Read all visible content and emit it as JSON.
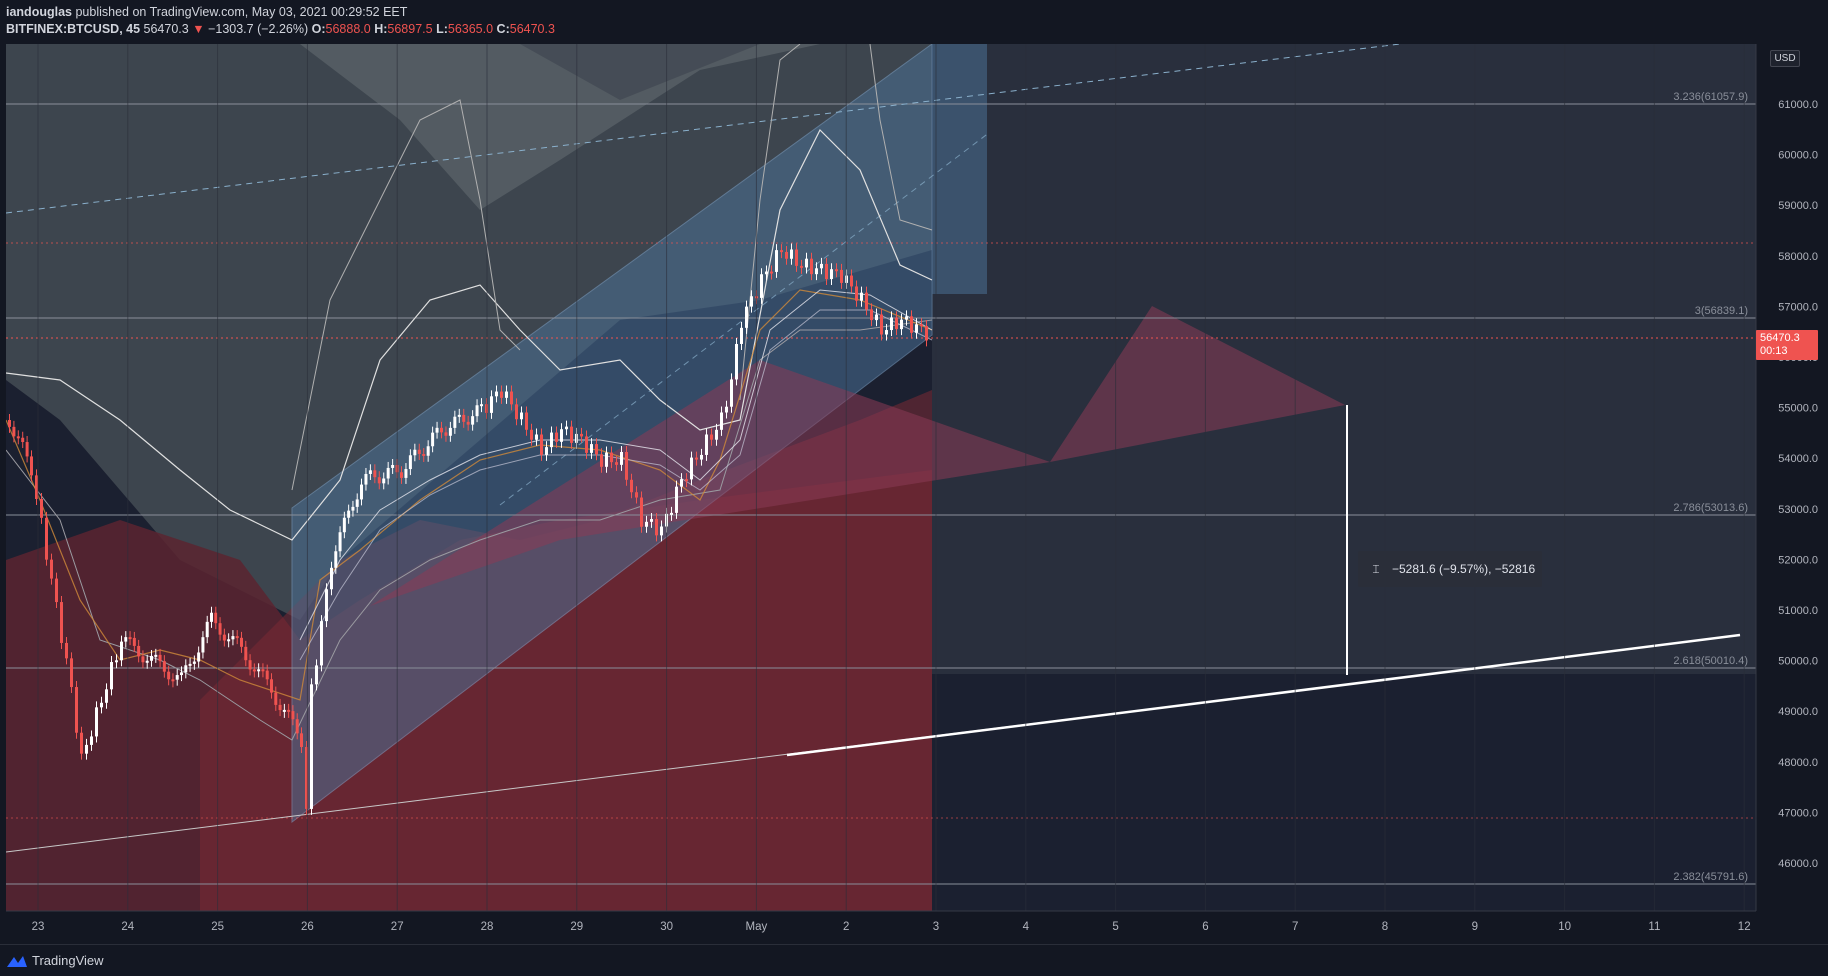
{
  "header": {
    "author": "iandouglas",
    "published_text": "published on TradingView.com, May 03, 2021 00:29:52 EET",
    "symbol": "BITFINEX:BTCUSD, 45",
    "last": "56470.3",
    "change": "−1303.7 (−2.26%)",
    "open_label": "O:",
    "open_value": "56888.0",
    "high_label": "H:",
    "high_value": "56897.5",
    "low_label": "L:",
    "low_value": "56365.0",
    "close_label": "C:",
    "close_value": "56470.3"
  },
  "price_axis": {
    "currency_button": "USD",
    "ticks": [
      "61000.0",
      "60000.0",
      "59000.0",
      "58000.0",
      "57000.0",
      "56000.0",
      "55000.0",
      "54000.0",
      "53000.0",
      "52000.0",
      "51000.0",
      "50000.0",
      "49000.0",
      "48000.0",
      "47000.0",
      "46000.0"
    ],
    "last_price": "56470.3",
    "countdown": "00:13"
  },
  "time_axis": {
    "ticks": [
      "23",
      "24",
      "25",
      "26",
      "27",
      "28",
      "29",
      "30",
      "May",
      "2",
      "3",
      "4",
      "5",
      "6",
      "7",
      "8",
      "9",
      "10",
      "11",
      "12"
    ]
  },
  "fib_levels": [
    {
      "label": "3.236(61057.9)"
    },
    {
      "label": "3(56839.1)"
    },
    {
      "label": "2.786(53013.6)"
    },
    {
      "label": "2.618(50010.4)"
    },
    {
      "label": "2.382(45791.6)"
    }
  ],
  "measure_tool": {
    "text": "−5281.6 (−9.57%), −52816"
  },
  "footer": {
    "brand": "TradingView"
  },
  "colors": {
    "background": "#131722",
    "up_candle": "#ffffff",
    "down_candle": "#ef5350",
    "channel": "#4a6f94",
    "red_zone": "#7a2a35",
    "last_price": "#ef5350"
  }
}
